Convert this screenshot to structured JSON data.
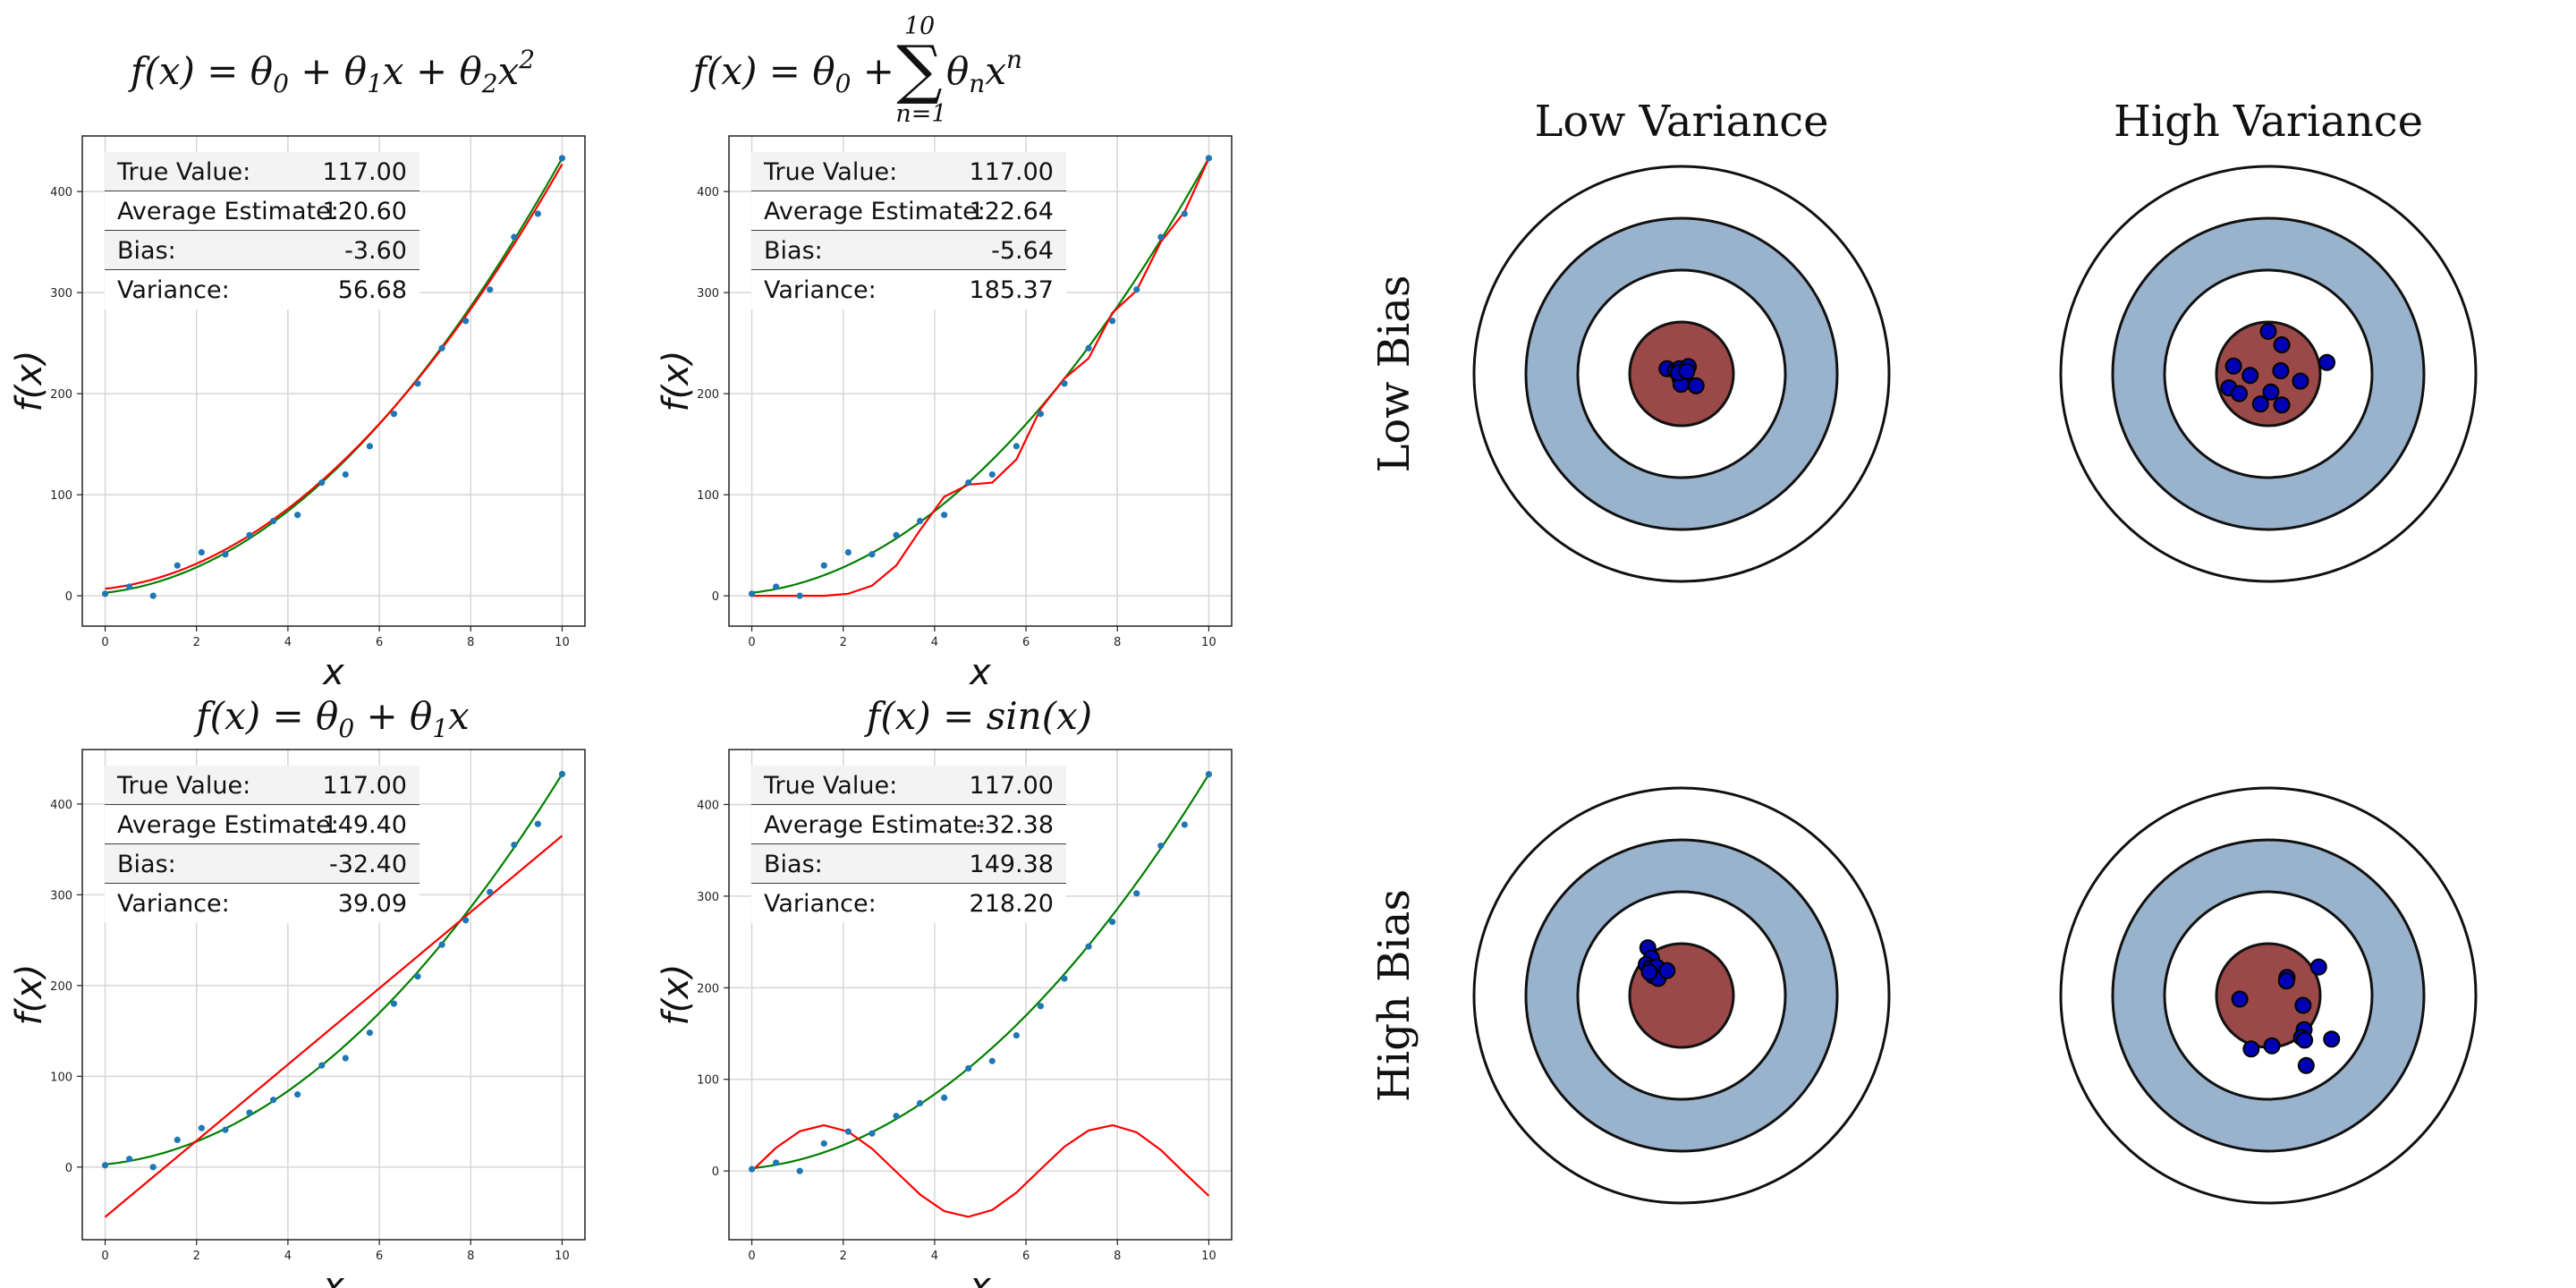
{
  "chart_data": [
    {
      "type": "scatter",
      "id": "quadratic",
      "title": "f(x) = θ₀ + θ₁x + θ₂x²",
      "xlabel": "x",
      "ylabel": "f(x)",
      "xlim": [
        -0.5,
        10.5
      ],
      "ylim": [
        -30,
        455
      ],
      "xticks": [
        0,
        2,
        4,
        6,
        8,
        10
      ],
      "yticks": [
        0,
        100,
        200,
        300,
        400
      ],
      "grid": true,
      "points": {
        "color": "#1f77b4",
        "x": [
          0,
          0.53,
          1.05,
          1.58,
          2.11,
          2.63,
          3.16,
          3.68,
          4.21,
          4.74,
          5.26,
          5.79,
          6.32,
          6.84,
          7.37,
          7.89,
          8.42,
          8.95,
          9.47,
          10
        ],
        "y": [
          2,
          9,
          0,
          30,
          43,
          41,
          60,
          74,
          80,
          112,
          120,
          148,
          180,
          210,
          245,
          272,
          303,
          355,
          378,
          433
        ]
      },
      "series": [
        {
          "role": "true",
          "color": "#008000",
          "form": "poly",
          "coef": [
            3,
            5,
            3.8
          ]
        },
        {
          "role": "estimate",
          "color": "#ff0000",
          "form": "poly",
          "coef": [
            7,
            5,
            3.7
          ]
        }
      ],
      "stats": [
        {
          "label": "True Value:",
          "value": "117.00"
        },
        {
          "label": "Average Estimate:",
          "value": "120.60"
        },
        {
          "label": "Bias:",
          "value": "-3.60"
        },
        {
          "label": "Variance:",
          "value": "56.68"
        }
      ]
    },
    {
      "type": "scatter",
      "id": "poly10",
      "title": "f(x) = θ₀ + Σ θₙxⁿ (n=1 to 10)",
      "title_parts": {
        "lhs": "f(x) = θ",
        "sub0": "0",
        "plus": "+",
        "upper": "10",
        "lower": "n=1",
        "rhs": "θ",
        "subn": "n",
        "x": "x",
        "supn": "n"
      },
      "xlabel": "x",
      "ylabel": "f(x)",
      "xlim": [
        -0.5,
        10.5
      ],
      "ylim": [
        -30,
        455
      ],
      "xticks": [
        0,
        2,
        4,
        6,
        8,
        10
      ],
      "yticks": [
        0,
        100,
        200,
        300,
        400
      ],
      "grid": true,
      "points": {
        "color": "#1f77b4",
        "x": [
          0,
          0.53,
          1.05,
          1.58,
          2.11,
          2.63,
          3.16,
          3.68,
          4.21,
          4.74,
          5.26,
          5.79,
          6.32,
          6.84,
          7.37,
          7.89,
          8.42,
          8.95,
          9.47,
          10
        ],
        "y": [
          2,
          9,
          0,
          30,
          43,
          41,
          60,
          74,
          80,
          112,
          120,
          148,
          180,
          210,
          245,
          272,
          303,
          355,
          378,
          433
        ]
      },
      "series": [
        {
          "role": "true",
          "color": "#008000",
          "form": "poly",
          "coef": [
            3,
            5,
            3.8
          ]
        },
        {
          "role": "estimate",
          "color": "#ff0000",
          "form": "points",
          "x": [
            0,
            0.53,
            1.05,
            1.58,
            2.11,
            2.63,
            3.16,
            3.68,
            4.21,
            4.74,
            5.26,
            5.79,
            6.32,
            6.84,
            7.37,
            7.89,
            8.42,
            8.95,
            9.47,
            10
          ],
          "y": [
            0,
            0,
            0,
            0,
            2,
            10,
            30,
            65,
            98,
            110,
            112,
            135,
            185,
            215,
            235,
            280,
            302,
            350,
            380,
            433
          ]
        }
      ],
      "stats": [
        {
          "label": "True Value:",
          "value": "117.00"
        },
        {
          "label": "Average Estimate:",
          "value": "122.64"
        },
        {
          "label": "Bias:",
          "value": "-5.64"
        },
        {
          "label": "Variance:",
          "value": "185.37"
        }
      ]
    },
    {
      "type": "scatter",
      "id": "linear",
      "title": "f(x) = θ₀ + θ₁x",
      "xlabel": "x",
      "ylabel": "f(x)",
      "xlim": [
        -0.5,
        10.5
      ],
      "ylim": [
        -80,
        460
      ],
      "xticks": [
        0,
        2,
        4,
        6,
        8,
        10
      ],
      "yticks": [
        0,
        100,
        200,
        300,
        400
      ],
      "grid": true,
      "points": {
        "color": "#1f77b4",
        "x": [
          0,
          0.53,
          1.05,
          1.58,
          2.11,
          2.63,
          3.16,
          3.68,
          4.21,
          4.74,
          5.26,
          5.79,
          6.32,
          6.84,
          7.37,
          7.89,
          8.42,
          8.95,
          9.47,
          10
        ],
        "y": [
          2,
          9,
          0,
          30,
          43,
          41,
          60,
          74,
          80,
          112,
          120,
          148,
          180,
          210,
          245,
          272,
          303,
          355,
          378,
          433
        ]
      },
      "series": [
        {
          "role": "true",
          "color": "#008000",
          "form": "poly",
          "coef": [
            3,
            5,
            3.8
          ]
        },
        {
          "role": "estimate",
          "color": "#ff0000",
          "form": "poly",
          "coef": [
            -55,
            42
          ]
        }
      ],
      "stats": [
        {
          "label": "True Value:",
          "value": "117.00"
        },
        {
          "label": "Average Estimate:",
          "value": "149.40"
        },
        {
          "label": "Bias:",
          "value": "-32.40"
        },
        {
          "label": "Variance:",
          "value": "39.09"
        }
      ]
    },
    {
      "type": "scatter",
      "id": "sine",
      "title": "f(x) = sin(x)",
      "xlabel": "x",
      "ylabel": "f(x)",
      "xlim": [
        -0.5,
        10.5
      ],
      "ylim": [
        -75,
        460
      ],
      "xticks": [
        0,
        2,
        4,
        6,
        8,
        10
      ],
      "yticks": [
        0,
        100,
        200,
        300,
        400
      ],
      "grid": true,
      "points": {
        "color": "#1f77b4",
        "x": [
          0,
          0.53,
          1.05,
          1.58,
          2.11,
          2.63,
          3.16,
          3.68,
          4.21,
          4.74,
          5.26,
          5.79,
          6.32,
          6.84,
          7.37,
          7.89,
          8.42,
          8.95,
          9.47,
          10
        ],
        "y": [
          2,
          9,
          0,
          30,
          43,
          41,
          60,
          74,
          80,
          112,
          120,
          148,
          180,
          210,
          245,
          272,
          303,
          355,
          378,
          433
        ]
      },
      "series": [
        {
          "role": "true",
          "color": "#008000",
          "form": "poly",
          "coef": [
            3,
            5,
            3.8
          ]
        },
        {
          "role": "estimate",
          "color": "#ff0000",
          "form": "sin",
          "amp": 50
        }
      ],
      "stats": [
        {
          "label": "True Value:",
          "value": "117.00"
        },
        {
          "label": "Average Estimate:",
          "value": "-32.38"
        },
        {
          "label": "Bias:",
          "value": "149.38"
        },
        {
          "label": "Variance:",
          "value": "218.20"
        }
      ]
    }
  ],
  "targets": {
    "col_labels": [
      "Low Variance",
      "High Variance"
    ],
    "row_labels": [
      "Low Bias",
      "High Bias"
    ],
    "ring_colors": {
      "outer": "#ffffff",
      "band": "#9ab3cd",
      "inner": "#ffffff",
      "bull": "#9a4848",
      "stroke": "#111111"
    },
    "dot_color": "#0000b4",
    "cells": [
      {
        "row": 0,
        "col": 0,
        "shots": [
          [
            -0.28,
            0.1
          ],
          [
            -0.12,
            0.06
          ],
          [
            -0.04,
            0.1
          ],
          [
            0.04,
            0.05
          ],
          [
            0.13,
            0.14
          ],
          [
            0.07,
            -0.02
          ],
          [
            -0.03,
            -0.09
          ],
          [
            -0.01,
            -0.2
          ],
          [
            0.28,
            -0.23
          ],
          [
            -0.06,
            0.02
          ],
          [
            0.1,
            0.05
          ]
        ]
      },
      {
        "row": 0,
        "col": 1,
        "shots": [
          [
            0.0,
            0.82
          ],
          [
            0.26,
            0.56
          ],
          [
            -0.67,
            0.15
          ],
          [
            -0.35,
            -0.03
          ],
          [
            -0.76,
            -0.27
          ],
          [
            0.24,
            0.06
          ],
          [
            -0.56,
            -0.38
          ],
          [
            -0.15,
            -0.58
          ],
          [
            0.26,
            -0.6
          ],
          [
            0.05,
            -0.35
          ],
          [
            0.62,
            -0.14
          ],
          [
            1.13,
            0.22
          ]
        ]
      },
      {
        "row": 1,
        "col": 0,
        "shots": [
          [
            -0.65,
            0.92
          ],
          [
            -0.58,
            0.72
          ],
          [
            -0.68,
            0.6
          ],
          [
            -0.6,
            0.53
          ],
          [
            -0.48,
            0.55
          ],
          [
            -0.55,
            0.38
          ],
          [
            -0.45,
            0.33
          ],
          [
            -0.28,
            0.48
          ],
          [
            -0.62,
            0.45
          ]
        ]
      },
      {
        "row": 1,
        "col": 1,
        "shots": [
          [
            -0.55,
            -0.07
          ],
          [
            0.36,
            0.35
          ],
          [
            0.35,
            0.28
          ],
          [
            0.97,
            0.55
          ],
          [
            0.67,
            -0.19
          ],
          [
            0.69,
            -0.66
          ],
          [
            0.64,
            -0.81
          ],
          [
            0.7,
            -0.86
          ],
          [
            1.22,
            -0.84
          ],
          [
            0.07,
            -0.97
          ],
          [
            -0.33,
            -1.03
          ],
          [
            0.73,
            -1.35
          ]
        ]
      }
    ]
  }
}
